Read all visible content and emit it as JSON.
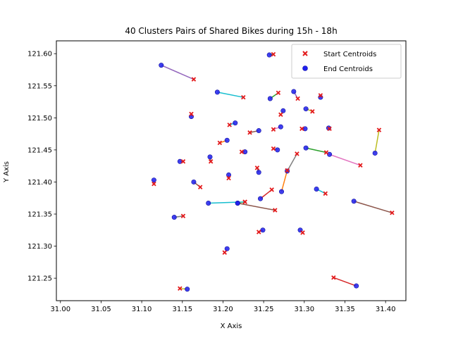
{
  "chart_data": {
    "type": "scatter",
    "title": "40 Clusters Pairs of Shared Bikes during 15h - 18h",
    "xlabel": "X Axis",
    "ylabel": "Y Axis",
    "xlim": [
      30.995,
      31.425
    ],
    "ylim": [
      121.215,
      121.62
    ],
    "x_ticks": [
      "31.00",
      "31.05",
      "31.10",
      "31.15",
      "31.20",
      "31.25",
      "31.30",
      "31.35",
      "31.40"
    ],
    "y_ticks": [
      "121.25",
      "121.30",
      "121.35",
      "121.40",
      "121.45",
      "121.50",
      "121.55",
      "121.60"
    ],
    "grid": false,
    "legend": {
      "placement": "top-right",
      "entries": [
        {
          "label": "Start Centroids",
          "color": "#e31a1c",
          "marker": "x"
        },
        {
          "label": "End Centroids",
          "color": "#1f1fef",
          "marker": "o"
        }
      ]
    },
    "pairs": [
      {
        "start": [
          31.262,
          121.599
        ],
        "end": [
          31.257,
          121.598
        ],
        "color": "#2ca02c"
      },
      {
        "start": [
          31.164,
          121.56
        ],
        "end": [
          31.124,
          121.582
        ],
        "color": "#9467bd"
      },
      {
        "start": [
          31.225,
          121.532
        ],
        "end": [
          31.193,
          121.54
        ],
        "color": "#17becf"
      },
      {
        "start": [
          31.268,
          121.539
        ],
        "end": [
          31.258,
          121.53
        ],
        "color": "#2ca02c"
      },
      {
        "start": [
          31.292,
          121.53
        ],
        "end": [
          31.287,
          121.541
        ],
        "color": "#9467bd"
      },
      {
        "start": [
          31.32,
          121.535
        ],
        "end": [
          31.32,
          121.532
        ],
        "color": "#d62728"
      },
      {
        "start": [
          31.161,
          121.506
        ],
        "end": [
          31.161,
          121.502
        ],
        "color": "#7f7f7f"
      },
      {
        "start": [
          31.31,
          121.51
        ],
        "end": [
          31.302,
          121.514
        ],
        "color": "#bcbd22"
      },
      {
        "start": [
          31.271,
          121.505
        ],
        "end": [
          31.274,
          121.511
        ],
        "color": "#ff7f0e"
      },
      {
        "start": [
          31.208,
          121.489
        ],
        "end": [
          31.215,
          121.492
        ],
        "color": "#17becf"
      },
      {
        "start": [
          31.297,
          121.483
        ],
        "end": [
          31.301,
          121.483
        ],
        "color": "#9467bd"
      },
      {
        "start": [
          31.331,
          121.483
        ],
        "end": [
          31.33,
          121.484
        ],
        "color": "#ff7f0e"
      },
      {
        "start": [
          31.233,
          121.477
        ],
        "end": [
          31.244,
          121.48
        ],
        "color": "#8c564b"
      },
      {
        "start": [
          31.262,
          121.482
        ],
        "end": [
          31.271,
          121.486
        ],
        "color": "#e377c2"
      },
      {
        "start": [
          31.392,
          121.481
        ],
        "end": [
          31.387,
          121.445
        ],
        "color": "#bcbd22"
      },
      {
        "start": [
          31.196,
          121.461
        ],
        "end": [
          31.205,
          121.465
        ],
        "color": "#ff7f0e"
      },
      {
        "start": [
          31.223,
          121.447
        ],
        "end": [
          31.227,
          121.447
        ],
        "color": "#d62728"
      },
      {
        "start": [
          31.262,
          121.452
        ],
        "end": [
          31.267,
          121.45
        ],
        "color": "#7f7f7f"
      },
      {
        "start": [
          31.327,
          121.446
        ],
        "end": [
          31.302,
          121.453
        ],
        "color": "#2ca02c"
      },
      {
        "start": [
          31.369,
          121.426
        ],
        "end": [
          31.331,
          121.443
        ],
        "color": "#e377c2"
      },
      {
        "start": [
          31.185,
          121.432
        ],
        "end": [
          31.184,
          121.439
        ],
        "color": "#7f7f7f"
      },
      {
        "start": [
          31.151,
          121.432
        ],
        "end": [
          31.147,
          121.432
        ],
        "color": "#bcbd22"
      },
      {
        "start": [
          31.291,
          121.444
        ],
        "end": [
          31.279,
          121.417
        ],
        "color": "#7f7f7f"
      },
      {
        "start": [
          31.242,
          121.422
        ],
        "end": [
          31.244,
          121.415
        ],
        "color": "#8c564b"
      },
      {
        "start": [
          31.207,
          121.406
        ],
        "end": [
          31.207,
          121.411
        ],
        "color": "#9467bd"
      },
      {
        "start": [
          31.115,
          121.397
        ],
        "end": [
          31.115,
          121.403
        ],
        "color": "#e377c2"
      },
      {
        "start": [
          31.172,
          121.392
        ],
        "end": [
          31.164,
          121.4
        ],
        "color": "#8c564b"
      },
      {
        "start": [
          31.279,
          121.418
        ],
        "end": [
          31.272,
          121.385
        ],
        "color": "#ff7f0e"
      },
      {
        "start": [
          31.326,
          121.382
        ],
        "end": [
          31.315,
          121.389
        ],
        "color": "#17becf"
      },
      {
        "start": [
          31.26,
          121.388
        ],
        "end": [
          31.246,
          121.374
        ],
        "color": "#d62728"
      },
      {
        "start": [
          31.227,
          121.369
        ],
        "end": [
          31.218,
          121.367
        ],
        "color": "#bcbd22"
      },
      {
        "start": [
          31.227,
          121.369
        ],
        "end": [
          31.182,
          121.367
        ],
        "color": "#17becf"
      },
      {
        "start": [
          31.264,
          121.356
        ],
        "end": [
          31.218,
          121.367
        ],
        "color": "#8c564b"
      },
      {
        "start": [
          31.408,
          121.352
        ],
        "end": [
          31.361,
          121.37
        ],
        "color": "#8c564b"
      },
      {
        "start": [
          31.151,
          121.347
        ],
        "end": [
          31.14,
          121.345
        ],
        "color": "#7f7f7f"
      },
      {
        "start": [
          31.244,
          121.322
        ],
        "end": [
          31.249,
          121.325
        ],
        "color": "#d62728"
      },
      {
        "start": [
          31.298,
          121.321
        ],
        "end": [
          31.295,
          121.325
        ],
        "color": "#9467bd"
      },
      {
        "start": [
          31.202,
          121.29
        ],
        "end": [
          31.205,
          121.296
        ],
        "color": "#e377c2"
      },
      {
        "start": [
          31.336,
          121.251
        ],
        "end": [
          31.364,
          121.238
        ],
        "color": "#d62728"
      },
      {
        "start": [
          31.147,
          121.234
        ],
        "end": [
          31.156,
          121.233
        ],
        "color": "#bcbd22"
      }
    ]
  }
}
